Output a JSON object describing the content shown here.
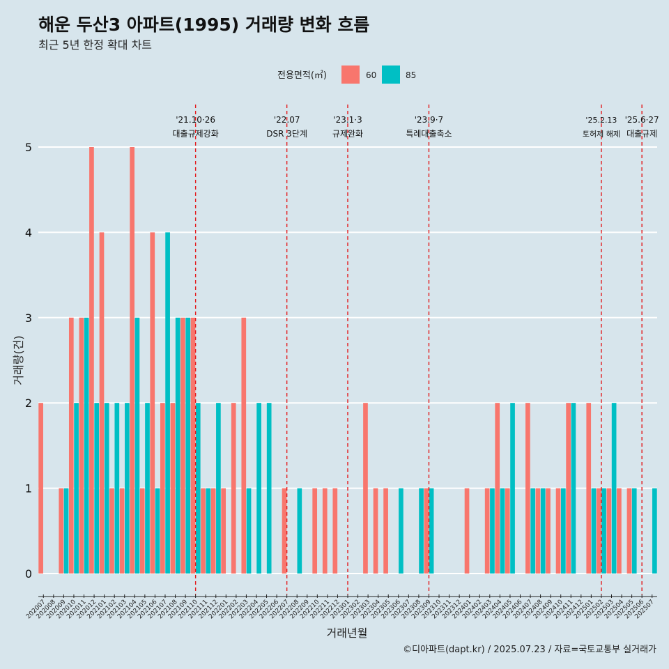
{
  "chart_data": {
    "type": "bar",
    "title": "해운 두산3 아파트(1995) 거래량 변화 흐름",
    "subtitle": "최근 5년 한정 확대 차트",
    "xlabel": "거래년월",
    "ylabel": "거래량(건)",
    "ylim": [
      0,
      5
    ],
    "yticks": [
      "0",
      "1",
      "2",
      "3",
      "4",
      "5"
    ],
    "legend": {
      "title": "전용면적(㎡)",
      "placement": "top-center",
      "entries": [
        {
          "name": "60",
          "color": "#f8766d"
        },
        {
          "name": "85",
          "color": "#00bfc4"
        }
      ]
    },
    "categories": [
      "202007",
      "202008",
      "202009",
      "202010",
      "202011",
      "202012",
      "202101",
      "202102",
      "202103",
      "202104",
      "202105",
      "202106",
      "202107",
      "202108",
      "202109",
      "202110",
      "202111",
      "202112",
      "202201",
      "202202",
      "202203",
      "202204",
      "202205",
      "202206",
      "202207",
      "202208",
      "202209",
      "202210",
      "202211",
      "202212",
      "202301",
      "202302",
      "202303",
      "202304",
      "202305",
      "202306",
      "202307",
      "202308",
      "202309",
      "202310",
      "202311",
      "202312",
      "202401",
      "202402",
      "202403",
      "202404",
      "202405",
      "202406",
      "202407",
      "202408",
      "202409",
      "202410",
      "202411",
      "202412",
      "202501",
      "202502",
      "202503",
      "202504",
      "202505",
      "202506",
      "202507"
    ],
    "series": [
      {
        "name": "60",
        "color": "#f8766d",
        "values": [
          2,
          0,
          1,
          3,
          3,
          5,
          4,
          1,
          1,
          5,
          1,
          4,
          2,
          2,
          3,
          3,
          1,
          1,
          1,
          2,
          3,
          0,
          0,
          0,
          1,
          0,
          0,
          1,
          1,
          1,
          0,
          0,
          2,
          1,
          1,
          0,
          0,
          0,
          1,
          0,
          0,
          0,
          1,
          0,
          1,
          2,
          1,
          0,
          2,
          1,
          1,
          1,
          2,
          0,
          2,
          1,
          1,
          1,
          1,
          0,
          0
        ]
      },
      {
        "name": "85",
        "color": "#00bfc4",
        "values": [
          0,
          0,
          1,
          2,
          3,
          2,
          2,
          2,
          2,
          3,
          2,
          1,
          4,
          3,
          3,
          2,
          1,
          2,
          0,
          0,
          1,
          2,
          2,
          0,
          0,
          1,
          0,
          0,
          0,
          0,
          0,
          0,
          0,
          0,
          0,
          1,
          0,
          1,
          1,
          0,
          0,
          0,
          0,
          0,
          1,
          1,
          2,
          0,
          1,
          1,
          0,
          1,
          2,
          0,
          1,
          1,
          2,
          0,
          1,
          0,
          1
        ]
      }
    ],
    "annotations": [
      {
        "category": "202110",
        "date": "'21.10·26",
        "label": "대출규제강화"
      },
      {
        "category": "202207",
        "date": "'22.07",
        "label": "DSR 3단계"
      },
      {
        "category": "202301",
        "date": "'23.1·3",
        "label": "규제완화"
      },
      {
        "category": "202309",
        "date": "'23.9·7",
        "label": "특례대출축소"
      },
      {
        "category": "202502",
        "date": "'25.2.13",
        "label": "토허제 해제"
      },
      {
        "category": "202506",
        "date": "'25.6·27",
        "label": "대출규제"
      }
    ],
    "caption": "©디아파트(dapt.kr) / 2025.07.23 / 자료=국토교통부 실거래가"
  },
  "colors": {
    "background": "#d7e5ec",
    "grid": "#ffffff",
    "annotation_line": "#e31a1c"
  }
}
